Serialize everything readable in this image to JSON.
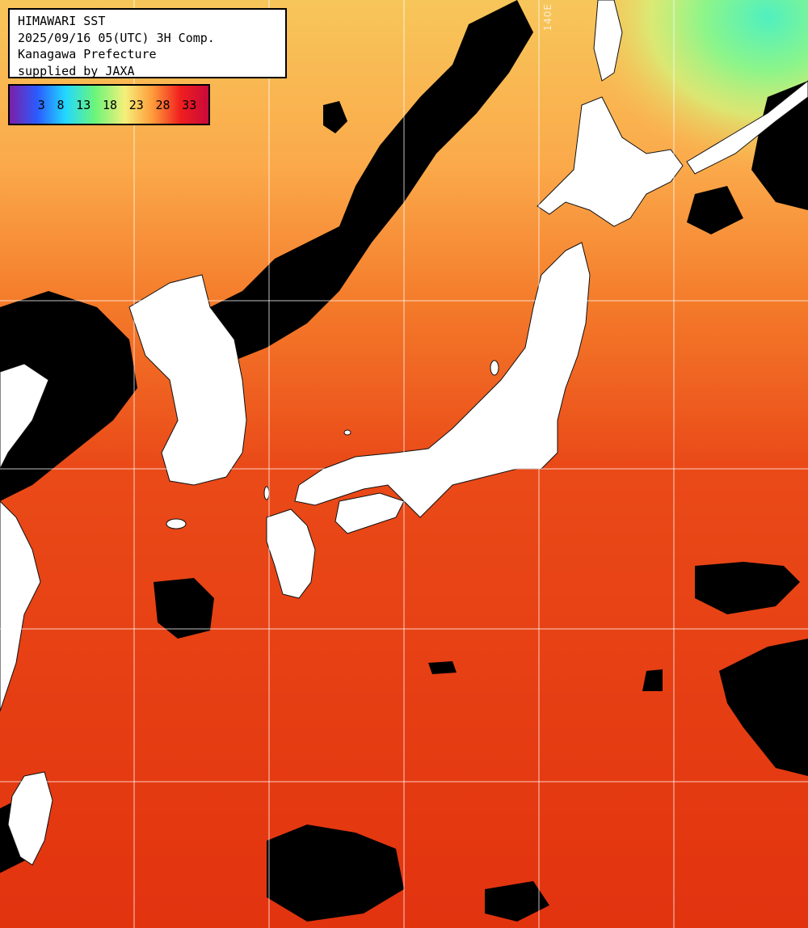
{
  "header": {
    "line1": "HIMAWARI SST",
    "line2": "2025/09/16 05(UTC) 3H Comp.",
    "line3": "Kanagawa Prefecture",
    "line4": "supplied by JAXA"
  },
  "legend": {
    "ticks": [
      "3",
      "8",
      "13",
      "18",
      "23",
      "28",
      "33"
    ],
    "colors": [
      "#7a1fa8",
      "#2a5cff",
      "#22d8ff",
      "#6cf57a",
      "#f5f07a",
      "#ff9a3a",
      "#f01e1e",
      "#c80a3a"
    ]
  },
  "grid": {
    "lon_label": "140E"
  },
  "colors": {
    "land": "#ffffff",
    "cloud": "#000000",
    "warm_sea": "#e63a14",
    "cool_sea": "#ffb050",
    "cold_sea": "#7cf59a"
  }
}
